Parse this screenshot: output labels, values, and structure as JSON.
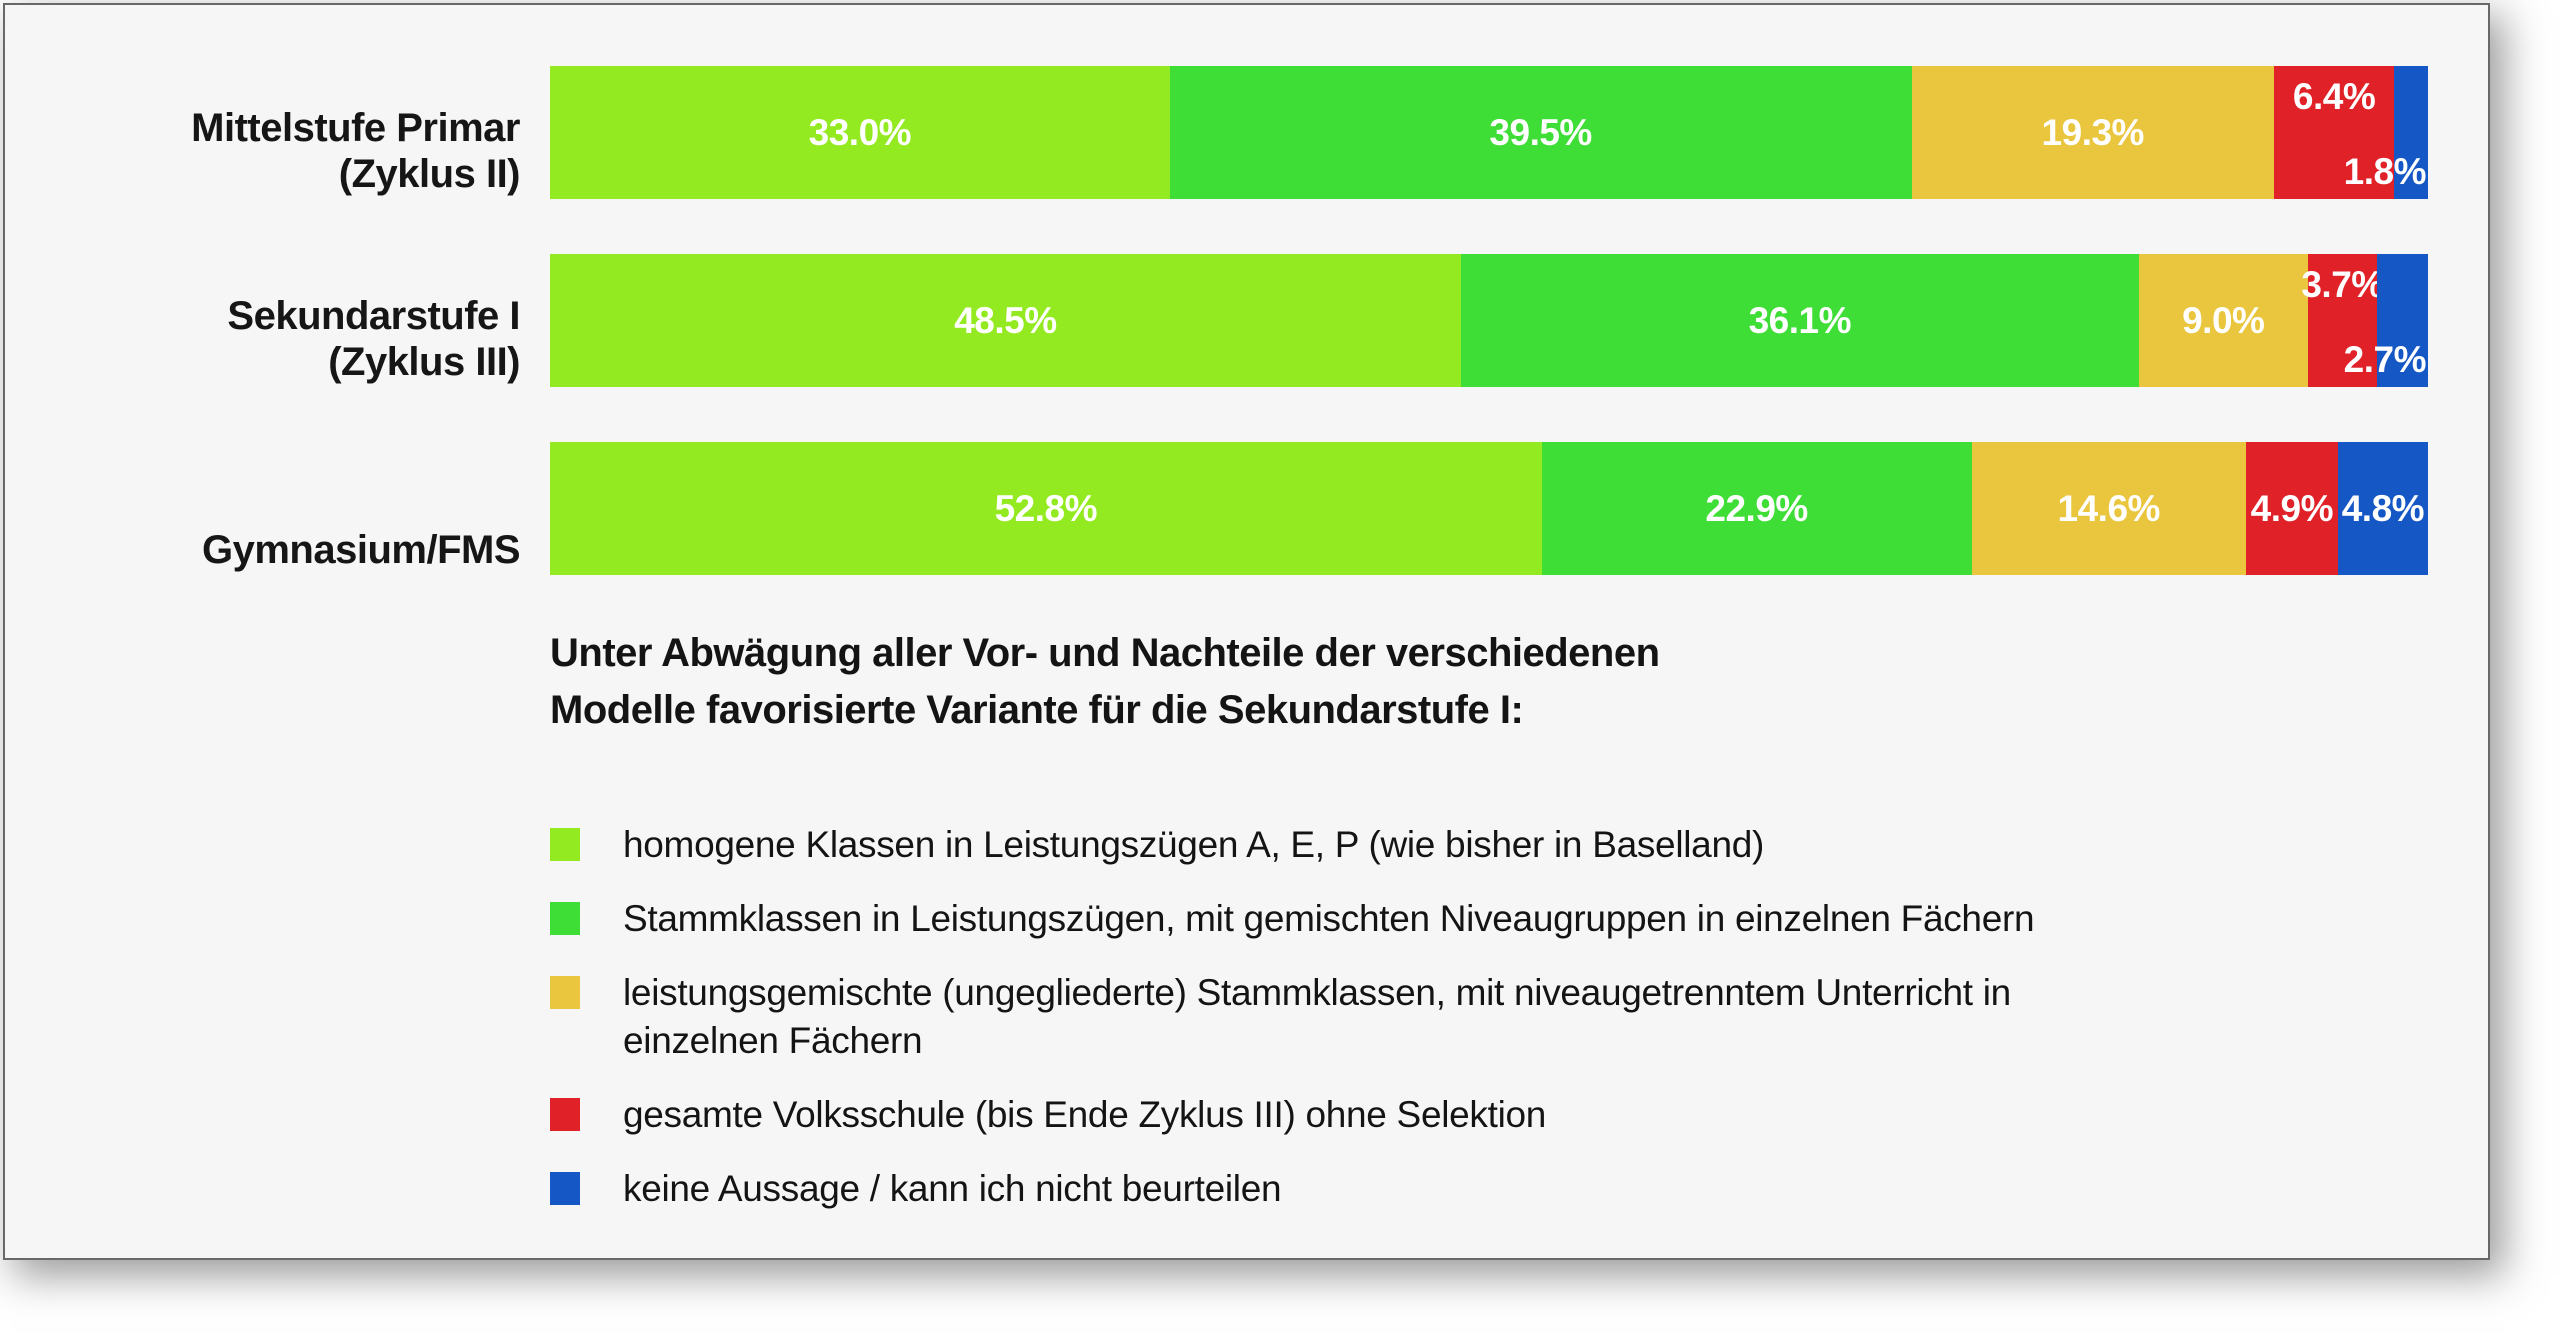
{
  "panel": {
    "background": "#F6F6F6",
    "border_color": "#686868"
  },
  "chart_data": {
    "type": "bar",
    "subtype": "horizontal-stacked",
    "title_lines": [
      "Unter Abwägung aller Vor- und Nachteile der verschiedenen",
      "Modelle favorisierte Variante für die Sekundarstufe I:"
    ],
    "xlim": [
      0,
      100
    ],
    "unit": "%",
    "grid": false,
    "legend_position": "bottom-left",
    "categories": [
      [
        "Mittelstufe Primar",
        "(Zyklus II)"
      ],
      [
        "Sekundarstufe I",
        "(Zyklus III)"
      ],
      [
        "Gymnasium/FMS"
      ]
    ],
    "series": [
      {
        "name": "homogene Klassen in Leistungszügen A, E, P (wie bisher in Baselland)",
        "color": "#94EA20",
        "values": [
          33.0,
          48.5,
          52.8
        ],
        "legend_lines": [
          "homogene Klassen in Leistungszügen A, E, P (wie bisher in Baselland)"
        ]
      },
      {
        "name": "Stammklassen in Leistungszügen, mit gemischten Niveaugruppen in einzelnen Fächern",
        "color": "#3FDE37",
        "values": [
          39.5,
          36.1,
          22.9
        ],
        "legend_lines": [
          "Stammklassen in Leistungszügen, mit gemischten Niveaugruppen in einzelnen Fächern"
        ]
      },
      {
        "name": "leistungsgemischte (ungegliederte) Stammklassen, mit niveaugetrenntem Unterricht in einzelnen Fächern",
        "color": "#E9C63D",
        "values": [
          19.3,
          9.0,
          14.6
        ],
        "legend_lines": [
          "leistungsgemischte (ungegliederte) Stammklassen, mit niveaugetrenntem Unterricht in",
          "einzelnen Fächern"
        ]
      },
      {
        "name": "gesamte Volksschule (bis Ende Zyklus III) ohne Selektion",
        "color": "#E02128",
        "values": [
          6.4,
          3.7,
          4.9
        ],
        "legend_lines": [
          "gesamte Volksschule (bis Ende Zyklus III) ohne Selektion"
        ]
      },
      {
        "name": "keine Aussage / kann ich nicht beurteilen",
        "color": "#1557C4",
        "values": [
          1.8,
          2.7,
          4.8
        ],
        "legend_lines": [
          "keine Aussage / kann ich nicht beurteilen"
        ]
      }
    ],
    "value_labels": [
      [
        "33.0%",
        "39.5%",
        "19.3%",
        "6.4%",
        "1.8%"
      ],
      [
        "48.5%",
        "36.1%",
        "9.0%",
        "3.7%",
        "2.7%"
      ],
      [
        "52.8%",
        "22.9%",
        "14.6%",
        "4.9%",
        "4.8%"
      ]
    ],
    "label_layout": [
      [
        "center",
        "center",
        "center",
        "top",
        "bottom-right"
      ],
      [
        "center",
        "center",
        "center",
        "top",
        "bottom-right"
      ],
      [
        "center",
        "center",
        "center",
        "center",
        "center"
      ]
    ]
  }
}
